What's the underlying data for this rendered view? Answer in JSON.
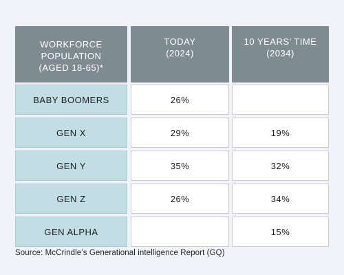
{
  "chart_data": {
    "type": "table",
    "headers": [
      [
        "WORKFORCE",
        "POPULATION",
        "(AGED 18-65)*"
      ],
      [
        "TODAY",
        "(2024)"
      ],
      [
        "10 YEARS’ TIME",
        "(2034)"
      ]
    ],
    "rows": [
      {
        "generation": "BABY BOOMERS",
        "today": "26%",
        "future": ""
      },
      {
        "generation": "GEN X",
        "today": "29%",
        "future": "19%"
      },
      {
        "generation": "GEN Y",
        "today": "35%",
        "future": "32%"
      },
      {
        "generation": "GEN Z",
        "today": "26%",
        "future": "34%"
      },
      {
        "generation": "GEN ALPHA",
        "today": "",
        "future": "15%"
      }
    ],
    "values_today": [
      26,
      29,
      35,
      26,
      null
    ],
    "values_2034": [
      null,
      19,
      32,
      34,
      15
    ]
  },
  "source": "Source: McCrindle’s Generational intelligence Report (GQ)",
  "colors": {
    "header_bg": "#7e8b90",
    "generation_bg": "#c2dde3",
    "value_bg": "#ffffff",
    "page_bg": "#f1f3f8"
  }
}
